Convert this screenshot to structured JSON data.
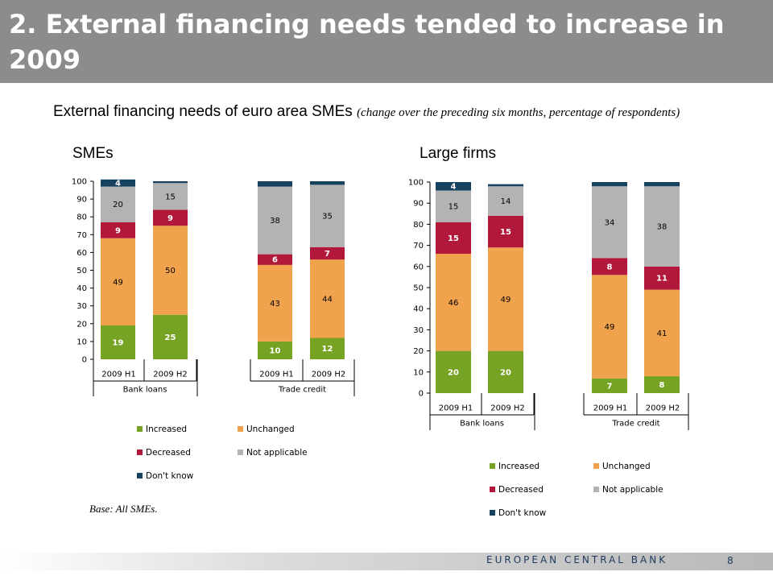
{
  "slide": {
    "title": "2. External financing needs tended to increase in 2009",
    "heading": "External financing needs of euro area SMEs",
    "heading_note": "(change over the preceding six months, percentage of respondents)",
    "base_note": "Base: All SMEs.",
    "footer_brand": "EUROPEAN CENTRAL BANK",
    "page_number": "8"
  },
  "chart_data": [
    {
      "type": "bar",
      "stacked": true,
      "panel_title": "SMEs",
      "categories": [
        "2009 H1",
        "2009 H2",
        "2009 H1",
        "2009 H2"
      ],
      "groups": [
        {
          "label": "Bank loans",
          "categories": [
            "2009 H1",
            "2009 H2"
          ]
        },
        {
          "label": "Trade credit",
          "categories": [
            "2009 H1",
            "2009 H2"
          ]
        }
      ],
      "series": [
        {
          "name": "Increased",
          "color": "#77a324",
          "values": [
            19,
            25,
            10,
            12
          ]
        },
        {
          "name": "Unchanged",
          "color": "#f0a24c",
          "values": [
            49,
            50,
            43,
            44
          ]
        },
        {
          "name": "Decreased",
          "color": "#b2183a",
          "values": [
            9,
            9,
            6,
            7
          ]
        },
        {
          "name": "Not applicable",
          "color": "#b3b3b3",
          "values": [
            20,
            15,
            38,
            35
          ]
        },
        {
          "name": "Don't know",
          "color": "#17425f",
          "values": [
            4,
            1,
            3,
            2
          ]
        }
      ],
      "data_labels": [
        [
          "19",
          "25",
          "10",
          "12"
        ],
        [
          "49",
          "50",
          "43",
          "44"
        ],
        [
          "9",
          "9",
          "6",
          "7"
        ],
        [
          "20",
          "15",
          "38",
          "35"
        ],
        [
          "4",
          "",
          "",
          ""
        ]
      ],
      "ylim": [
        0,
        100
      ],
      "yticks": [
        0,
        10,
        20,
        30,
        40,
        50,
        60,
        70,
        80,
        90,
        100
      ],
      "grid": false,
      "legend": "bottom"
    },
    {
      "type": "bar",
      "stacked": true,
      "panel_title": "Large firms",
      "categories": [
        "2009 H1",
        "2009 H2",
        "2009 H1",
        "2009 H2"
      ],
      "groups": [
        {
          "label": "Bank loans",
          "categories": [
            "2009 H1",
            "2009 H2"
          ]
        },
        {
          "label": "Trade credit",
          "categories": [
            "2009 H1",
            "2009 H2"
          ]
        }
      ],
      "series": [
        {
          "name": "Increased",
          "color": "#77a324",
          "values": [
            20,
            20,
            7,
            8
          ]
        },
        {
          "name": "Unchanged",
          "color": "#f0a24c",
          "values": [
            46,
            49,
            49,
            41
          ]
        },
        {
          "name": "Decreased",
          "color": "#b2183a",
          "values": [
            15,
            15,
            8,
            11
          ]
        },
        {
          "name": "Not applicable",
          "color": "#b3b3b3",
          "values": [
            15,
            14,
            34,
            38
          ]
        },
        {
          "name": "Don't know",
          "color": "#17425f",
          "values": [
            4,
            1,
            2,
            2
          ]
        }
      ],
      "data_labels": [
        [
          "20",
          "20",
          "7",
          "8"
        ],
        [
          "46",
          "49",
          "49",
          "41"
        ],
        [
          "15",
          "15",
          "8",
          "11"
        ],
        [
          "15",
          "14",
          "34",
          "38"
        ],
        [
          "4",
          "",
          "",
          ""
        ]
      ],
      "ylim": [
        0,
        100
      ],
      "yticks": [
        0,
        10,
        20,
        30,
        40,
        50,
        60,
        70,
        80,
        90,
        100
      ],
      "grid": false,
      "legend": "bottom"
    }
  ]
}
